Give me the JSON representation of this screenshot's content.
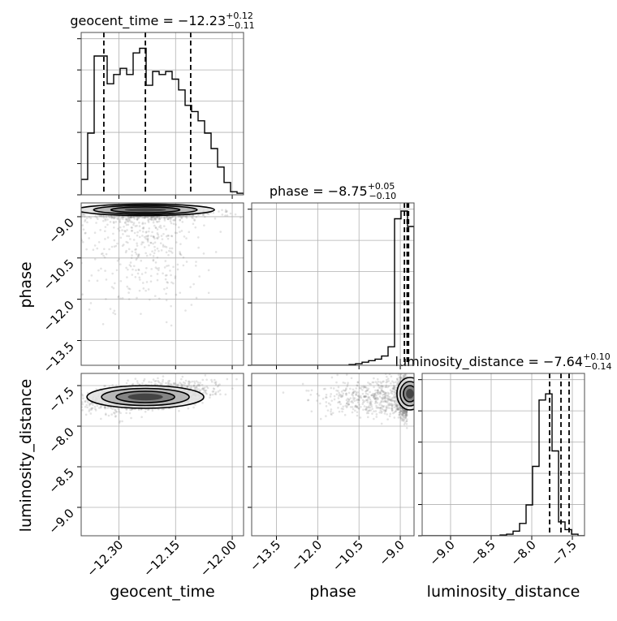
{
  "chart_data": {
    "type": "corner",
    "parameters": [
      {
        "name": "geocent_time",
        "median": "−12.23",
        "plus": "+0.12",
        "minus": "−0.11",
        "title_prefix": "geocent_time = ",
        "range": [
          -12.4,
          -11.97
        ],
        "ticks": [
          -12.3,
          -12.15,
          -12.0
        ],
        "tick_labels": [
          "−12.30",
          "−12.15",
          "−12.00"
        ],
        "quantiles": [
          -12.34,
          -12.23,
          -12.11
        ],
        "hist": [
          0.1,
          0.4,
          0.9,
          0.9,
          0.72,
          0.78,
          0.82,
          0.78,
          0.92,
          0.95,
          0.71,
          0.8,
          0.78,
          0.8,
          0.75,
          0.68,
          0.58,
          0.54,
          0.48,
          0.4,
          0.3,
          0.18,
          0.08,
          0.02,
          0.01
        ]
      },
      {
        "name": "phase",
        "median": "−8.75",
        "plus": "+0.05",
        "minus": "−0.10",
        "title_prefix": "phase = ",
        "range": [
          -14.4,
          -8.5
        ],
        "ticks": [
          -13.5,
          -12.0,
          -10.5,
          -9.0
        ],
        "tick_labels": [
          "−13.5",
          "−12.0",
          "−10.5",
          "−9.0"
        ],
        "quantiles": [
          -8.85,
          -8.75,
          -8.7
        ],
        "hist": [
          0,
          0,
          0,
          0,
          0,
          0,
          0,
          0,
          0,
          0,
          0,
          0,
          0,
          0,
          0,
          0.005,
          0.01,
          0.02,
          0.03,
          0.04,
          0.06,
          0.12,
          0.95,
          1.0,
          0.9
        ]
      },
      {
        "name": "luminosity_distance",
        "median": "−7.64",
        "plus": "+0.10",
        "minus": "−0.14",
        "title_prefix": "luminosity_distance = ",
        "range": [
          -9.35,
          -7.35
        ],
        "ticks": [
          -9.0,
          -8.5,
          -8.0,
          -7.5
        ],
        "tick_labels": [
          "−9.0",
          "−8.5",
          "−8.0",
          "−7.5"
        ],
        "quantiles": [
          -7.78,
          -7.64,
          -7.54
        ],
        "hist": [
          0,
          0,
          0,
          0,
          0,
          0,
          0,
          0,
          0,
          0,
          0,
          0,
          0.005,
          0.01,
          0.03,
          0.08,
          0.2,
          0.45,
          0.88,
          0.92,
          0.55,
          0.09,
          0.04,
          0.01,
          0
        ]
      }
    ],
    "axis_labels": {
      "phase": "phase",
      "luminosity_distance": "luminosity_distance",
      "geocent_time": "geocent_time"
    },
    "grid": true
  }
}
